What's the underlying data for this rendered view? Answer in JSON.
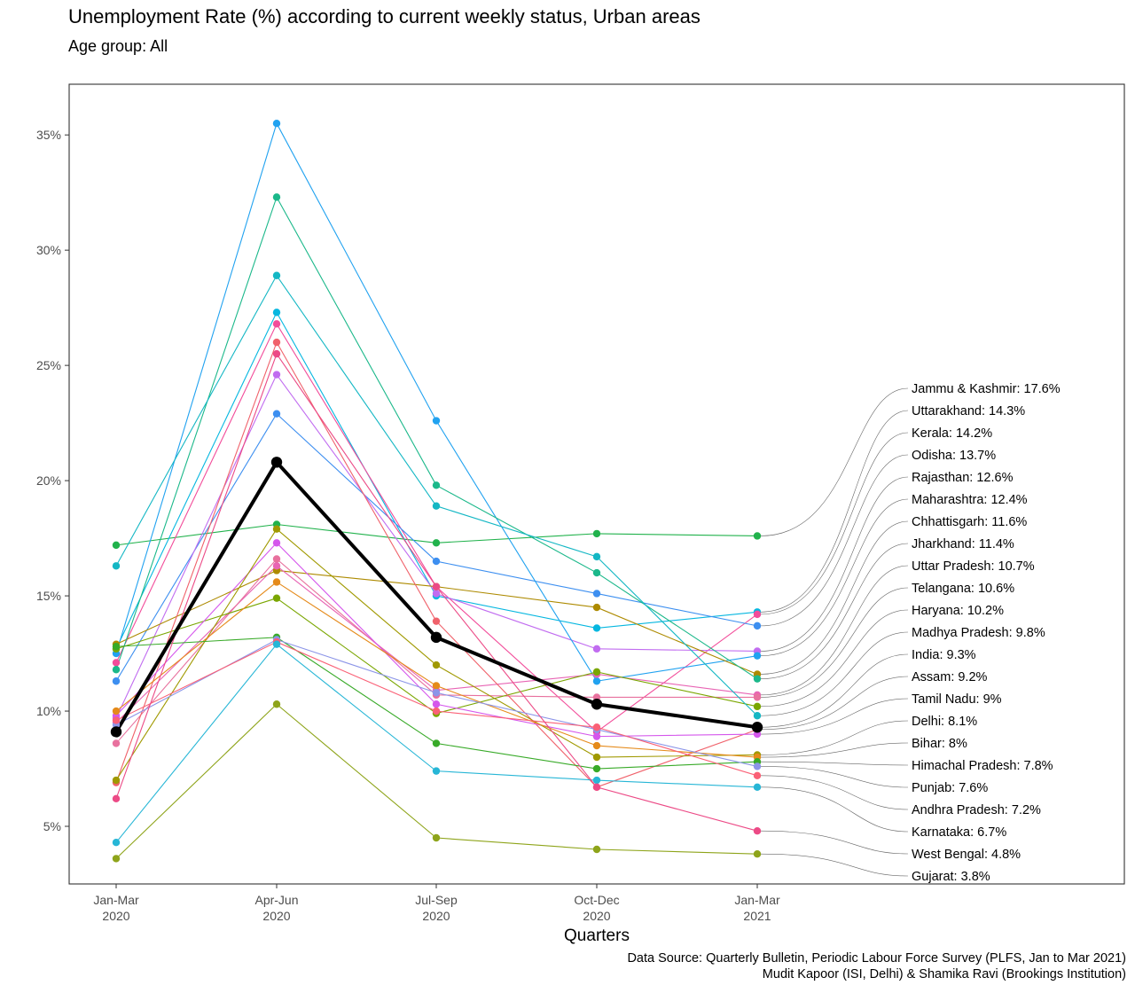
{
  "chart_data": {
    "type": "line",
    "title": "Unemployment Rate (%) according to current weekly status, Urban areas",
    "subtitle": "Age group: All",
    "xlabel": "Quarters",
    "ylabel": "",
    "categories": [
      [
        "Jan-Mar",
        "2020"
      ],
      [
        "Apr-Jun",
        "2020"
      ],
      [
        "Jul-Sep",
        "2020"
      ],
      [
        "Oct-Dec",
        "2020"
      ],
      [
        "Jan-Mar",
        "2021"
      ]
    ],
    "yticks": [
      {
        "value": 5,
        "label": "5%"
      },
      {
        "value": 10,
        "label": "10%"
      },
      {
        "value": 15,
        "label": "15%"
      },
      {
        "value": 20,
        "label": "20%"
      },
      {
        "value": 25,
        "label": "25%"
      },
      {
        "value": 30,
        "label": "30%"
      },
      {
        "value": 35,
        "label": "35%"
      }
    ],
    "ylim": [
      2.5,
      37.2
    ],
    "grid": false,
    "legend": "direct labels at right",
    "highlight_series": "India",
    "series": [
      {
        "name": "Jammu & Kashmir",
        "label": "Jammu & Kashmir: 17.6%",
        "color": "#21b24c",
        "values": [
          17.2,
          18.1,
          17.3,
          17.7,
          17.6
        ]
      },
      {
        "name": "Uttarakhand",
        "label": "Uttarakhand: 14.3%",
        "color": "#06b7e0",
        "values": [
          12.7,
          27.3,
          15.0,
          13.6,
          14.3
        ]
      },
      {
        "name": "Kerala",
        "label": "Kerala: 14.2%",
        "color": "#f24c9a",
        "values": [
          12.1,
          26.8,
          15.4,
          9.1,
          14.2
        ]
      },
      {
        "name": "Odisha",
        "label": "Odisha: 13.7%",
        "color": "#3d8ff0",
        "values": [
          11.3,
          22.9,
          16.5,
          15.1,
          13.7
        ]
      },
      {
        "name": "Rajasthan",
        "label": "Rajasthan: 12.6%",
        "color": "#c16cf0",
        "values": [
          9.7,
          24.6,
          15.1,
          12.7,
          12.6
        ]
      },
      {
        "name": "Maharashtra",
        "label": "Maharashtra: 12.4%",
        "color": "#21a2f0",
        "values": [
          12.5,
          35.5,
          22.6,
          11.3,
          12.4
        ]
      },
      {
        "name": "Chhattisgarh",
        "label": "Chhattisgarh: 11.6%",
        "color": "#ad8a00",
        "values": [
          12.9,
          16.1,
          15.4,
          14.5,
          11.6
        ]
      },
      {
        "name": "Jharkhand",
        "label": "Jharkhand: 11.4%",
        "color": "#1bb88a",
        "values": [
          11.8,
          32.3,
          19.8,
          16.0,
          11.4
        ]
      },
      {
        "name": "Uttar Pradesh",
        "label": "Uttar Pradesh: 10.7%",
        "color": "#e864b4",
        "values": [
          9.5,
          16.3,
          10.9,
          11.6,
          10.7
        ]
      },
      {
        "name": "Telangana",
        "label": "Telangana: 10.6%",
        "color": "#e8719e",
        "values": [
          8.6,
          16.6,
          10.7,
          10.6,
          10.6
        ]
      },
      {
        "name": "Haryana",
        "label": "Haryana: 10.2%",
        "color": "#7aa600",
        "values": [
          12.7,
          14.9,
          9.9,
          11.7,
          10.2
        ]
      },
      {
        "name": "Madhya Pradesh",
        "label": "Madhya Pradesh: 9.8%",
        "color": "#14b7c4",
        "values": [
          16.3,
          28.9,
          18.9,
          16.7,
          9.8
        ]
      },
      {
        "name": "India",
        "label": "India: 9.3%",
        "color": "#000000",
        "values": [
          9.1,
          20.8,
          13.2,
          10.3,
          9.3
        ]
      },
      {
        "name": "Assam",
        "label": "Assam: 9.2%",
        "color": "#f0626b",
        "values": [
          6.9,
          26.0,
          13.9,
          6.7,
          9.2
        ]
      },
      {
        "name": "Tamil Nadu",
        "label": "Tamil Nadu: 9%",
        "color": "#d557ec",
        "values": [
          9.8,
          17.3,
          10.3,
          8.9,
          9.0
        ]
      },
      {
        "name": "Delhi",
        "label": "Delhi: 8.1%",
        "color": "#a09900",
        "values": [
          7.0,
          17.9,
          12.0,
          8.0,
          8.1
        ]
      },
      {
        "name": "Bihar",
        "label": "Bihar: 8%",
        "color": "#e58a1a",
        "values": [
          10.0,
          15.6,
          11.1,
          8.5,
          8.0
        ]
      },
      {
        "name": "Himachal Pradesh",
        "label": "Himachal Pradesh: 7.8%",
        "color": "#38aa28",
        "values": [
          12.8,
          13.2,
          8.6,
          7.5,
          7.8
        ]
      },
      {
        "name": "Punjab",
        "label": "Punjab: 7.6%",
        "color": "#8c95e8",
        "values": [
          9.4,
          13.1,
          10.8,
          9.2,
          7.6
        ]
      },
      {
        "name": "Andhra Pradesh",
        "label": "Andhra Pradesh: 7.2%",
        "color": "#fa6076",
        "values": [
          9.6,
          13.0,
          10.0,
          9.3,
          7.2
        ]
      },
      {
        "name": "Karnataka",
        "label": "Karnataka: 6.7%",
        "color": "#27b6d6",
        "values": [
          4.3,
          12.9,
          7.4,
          7.0,
          6.7
        ]
      },
      {
        "name": "West Bengal",
        "label": "West Bengal: 4.8%",
        "color": "#ec4a86",
        "values": [
          6.2,
          25.5,
          15.4,
          6.7,
          4.8
        ]
      },
      {
        "name": "Gujarat",
        "label": "Gujarat: 3.8%",
        "color": "#8ea41a",
        "values": [
          3.6,
          10.3,
          4.5,
          4.0,
          3.8
        ]
      }
    ]
  },
  "source": {
    "line1": "Data Source: Quarterly Bulletin, Periodic Labour Force Survey (PLFS, Jan to Mar 2021)",
    "line2": "Mudit Kapoor (ISI, Delhi) & Shamika Ravi (Brookings Institution)"
  }
}
